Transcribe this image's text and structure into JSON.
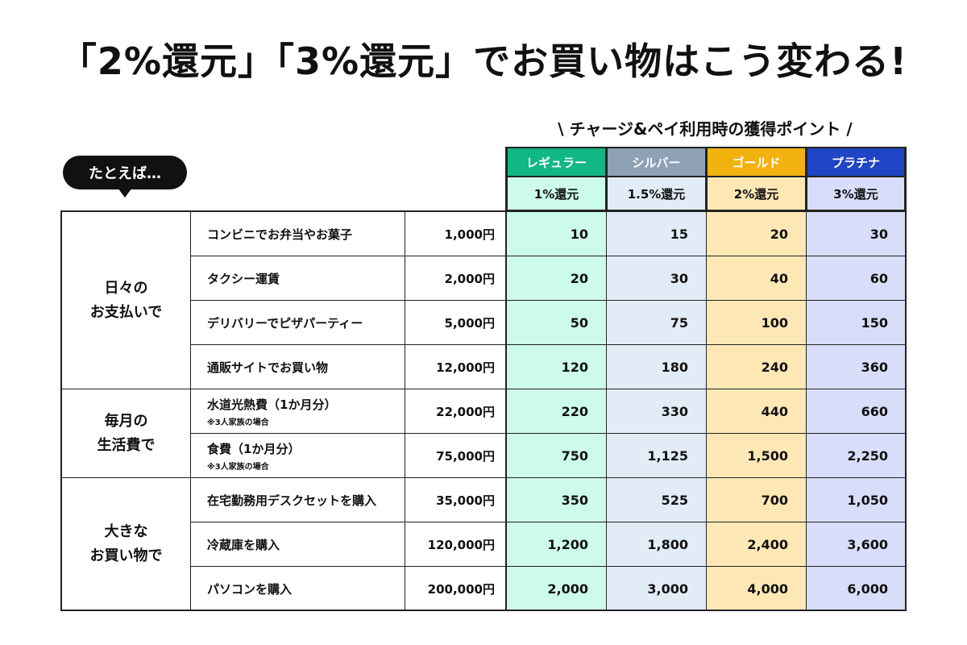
{
  "title": "「2%還元」「3%還元」でお買い物はこう変わる!",
  "subtitle": "\\ チャージ&ペイ利用時の獲得ポイント /",
  "example_label": "たとえば…",
  "tiers": [
    {
      "name": "レギュラー",
      "rate": "1%還元",
      "header_color": "#11b784",
      "cell_color": "#cdfbeb"
    },
    {
      "name": "シルバー",
      "rate": "1.5%還元",
      "header_color": "#8ea0b4",
      "cell_color": "#e2ecf6"
    },
    {
      "name": "ゴールド",
      "rate": "2%還元",
      "header_color": "#f2b310",
      "cell_color": "#fde8b5"
    },
    {
      "name": "プラチナ",
      "rate": "3%還元",
      "header_color": "#1f44c4",
      "cell_color": "#d8def9"
    }
  ],
  "groups": [
    {
      "label_line1": "日々の",
      "label_line2": "お支払いで",
      "rows": [
        {
          "item": "コンビニでお弁当やお菓子",
          "note": "",
          "price": "1,000円",
          "points": [
            "10",
            "15",
            "20",
            "30"
          ]
        },
        {
          "item": "タクシー運賃",
          "note": "",
          "price": "2,000円",
          "points": [
            "20",
            "30",
            "40",
            "60"
          ]
        },
        {
          "item": "デリバリーでピザパーティー",
          "note": "",
          "price": "5,000円",
          "points": [
            "50",
            "75",
            "100",
            "150"
          ]
        },
        {
          "item": "通販サイトでお買い物",
          "note": "",
          "price": "12,000円",
          "points": [
            "120",
            "180",
            "240",
            "360"
          ]
        }
      ]
    },
    {
      "label_line1": "毎月の",
      "label_line2": "生活費で",
      "rows": [
        {
          "item": "水道光熱費（1か月分）",
          "note": "※3人家族の場合",
          "price": "22,000円",
          "points": [
            "220",
            "330",
            "440",
            "660"
          ]
        },
        {
          "item": "食費（1か月分）",
          "note": "※3人家族の場合",
          "price": "75,000円",
          "points": [
            "750",
            "1,125",
            "1,500",
            "2,250"
          ]
        }
      ]
    },
    {
      "label_line1": "大きな",
      "label_line2": "お買い物で",
      "rows": [
        {
          "item": "在宅勤務用デスクセットを購入",
          "note": "",
          "price": "35,000円",
          "points": [
            "350",
            "525",
            "700",
            "1,050"
          ]
        },
        {
          "item": "冷蔵庫を購入",
          "note": "",
          "price": "120,000円",
          "points": [
            "1,200",
            "1,800",
            "2,400",
            "3,600"
          ]
        },
        {
          "item": "パソコンを購入",
          "note": "",
          "price": "200,000円",
          "points": [
            "2,000",
            "3,000",
            "4,000",
            "6,000"
          ]
        }
      ]
    }
  ]
}
